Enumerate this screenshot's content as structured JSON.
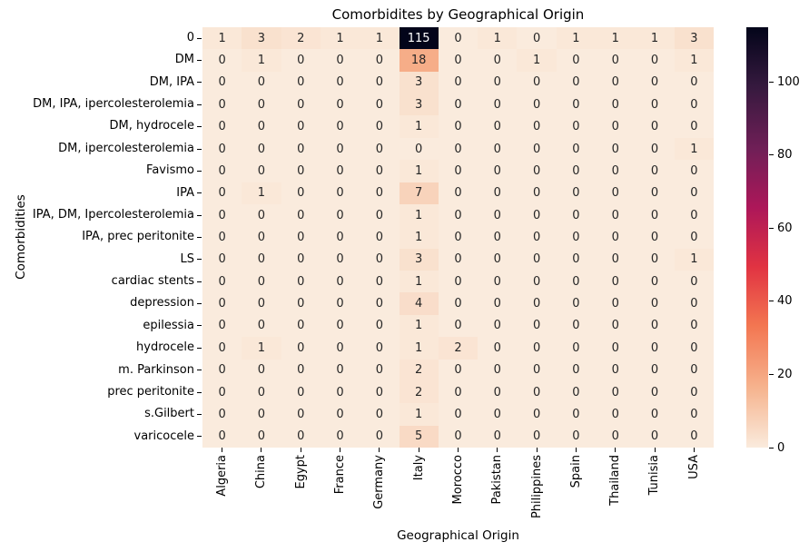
{
  "title": "Comorbidites by Geographical Origin",
  "chart_data": {
    "type": "heatmap",
    "title": "Comorbidites by Geographical Origin",
    "xlabel": "Geographical Origin",
    "ylabel": "Comorbidities",
    "columns": [
      "Algeria",
      "China",
      "Egypt",
      "France",
      "Germany",
      "Italy",
      "Morocco",
      "Pakistan",
      "Philippines",
      "Spain",
      "Thailand",
      "Tunisia",
      "USA"
    ],
    "rows": [
      "0",
      "DM",
      "DM, IPA",
      "DM, IPA, ipercolesterolemia",
      "DM, hydrocele",
      "DM, ipercolesterolemia",
      "Favismo",
      "IPA",
      "IPA, DM, Ipercolesterolemia",
      "IPA, prec peritonite",
      "LS",
      "cardiac stents",
      "depression",
      "epilessia",
      "hydrocele",
      "m. Parkinson",
      "prec peritonite",
      "s.Gilbert",
      "varicocele"
    ],
    "values": [
      [
        1,
        3,
        2,
        1,
        1,
        115,
        0,
        1,
        0,
        1,
        1,
        1,
        3
      ],
      [
        0,
        1,
        0,
        0,
        0,
        18,
        0,
        0,
        1,
        0,
        0,
        0,
        1
      ],
      [
        0,
        0,
        0,
        0,
        0,
        3,
        0,
        0,
        0,
        0,
        0,
        0,
        0
      ],
      [
        0,
        0,
        0,
        0,
        0,
        3,
        0,
        0,
        0,
        0,
        0,
        0,
        0
      ],
      [
        0,
        0,
        0,
        0,
        0,
        1,
        0,
        0,
        0,
        0,
        0,
        0,
        0
      ],
      [
        0,
        0,
        0,
        0,
        0,
        0,
        0,
        0,
        0,
        0,
        0,
        0,
        1
      ],
      [
        0,
        0,
        0,
        0,
        0,
        1,
        0,
        0,
        0,
        0,
        0,
        0,
        0
      ],
      [
        0,
        1,
        0,
        0,
        0,
        7,
        0,
        0,
        0,
        0,
        0,
        0,
        0
      ],
      [
        0,
        0,
        0,
        0,
        0,
        1,
        0,
        0,
        0,
        0,
        0,
        0,
        0
      ],
      [
        0,
        0,
        0,
        0,
        0,
        1,
        0,
        0,
        0,
        0,
        0,
        0,
        0
      ],
      [
        0,
        0,
        0,
        0,
        0,
        3,
        0,
        0,
        0,
        0,
        0,
        0,
        1
      ],
      [
        0,
        0,
        0,
        0,
        0,
        1,
        0,
        0,
        0,
        0,
        0,
        0,
        0
      ],
      [
        0,
        0,
        0,
        0,
        0,
        4,
        0,
        0,
        0,
        0,
        0,
        0,
        0
      ],
      [
        0,
        0,
        0,
        0,
        0,
        1,
        0,
        0,
        0,
        0,
        0,
        0,
        0
      ],
      [
        0,
        1,
        0,
        0,
        0,
        1,
        2,
        0,
        0,
        0,
        0,
        0,
        0
      ],
      [
        0,
        0,
        0,
        0,
        0,
        2,
        0,
        0,
        0,
        0,
        0,
        0,
        0
      ],
      [
        0,
        0,
        0,
        0,
        0,
        2,
        0,
        0,
        0,
        0,
        0,
        0,
        0
      ],
      [
        0,
        0,
        0,
        0,
        0,
        1,
        0,
        0,
        0,
        0,
        0,
        0,
        0
      ],
      [
        0,
        0,
        0,
        0,
        0,
        5,
        0,
        0,
        0,
        0,
        0,
        0,
        0
      ]
    ],
    "vmin": 0,
    "vmax": 115,
    "colormap": "rocket_r",
    "colormap_stops": [
      [
        0.0,
        "#FAEBDD"
      ],
      [
        0.14,
        "#F6B48F"
      ],
      [
        0.29,
        "#F37651"
      ],
      [
        0.43,
        "#E13342"
      ],
      [
        0.57,
        "#AD1759"
      ],
      [
        0.71,
        "#701F57"
      ],
      [
        0.86,
        "#35193E"
      ],
      [
        1.0,
        "#03051A"
      ]
    ],
    "colorbar_ticks": [
      0,
      20,
      40,
      60,
      80,
      100
    ],
    "annot_color_dark": "#262626",
    "annot_color_light": "#FFFFFF",
    "grid": "off",
    "legend_position": "colorbar-right"
  }
}
